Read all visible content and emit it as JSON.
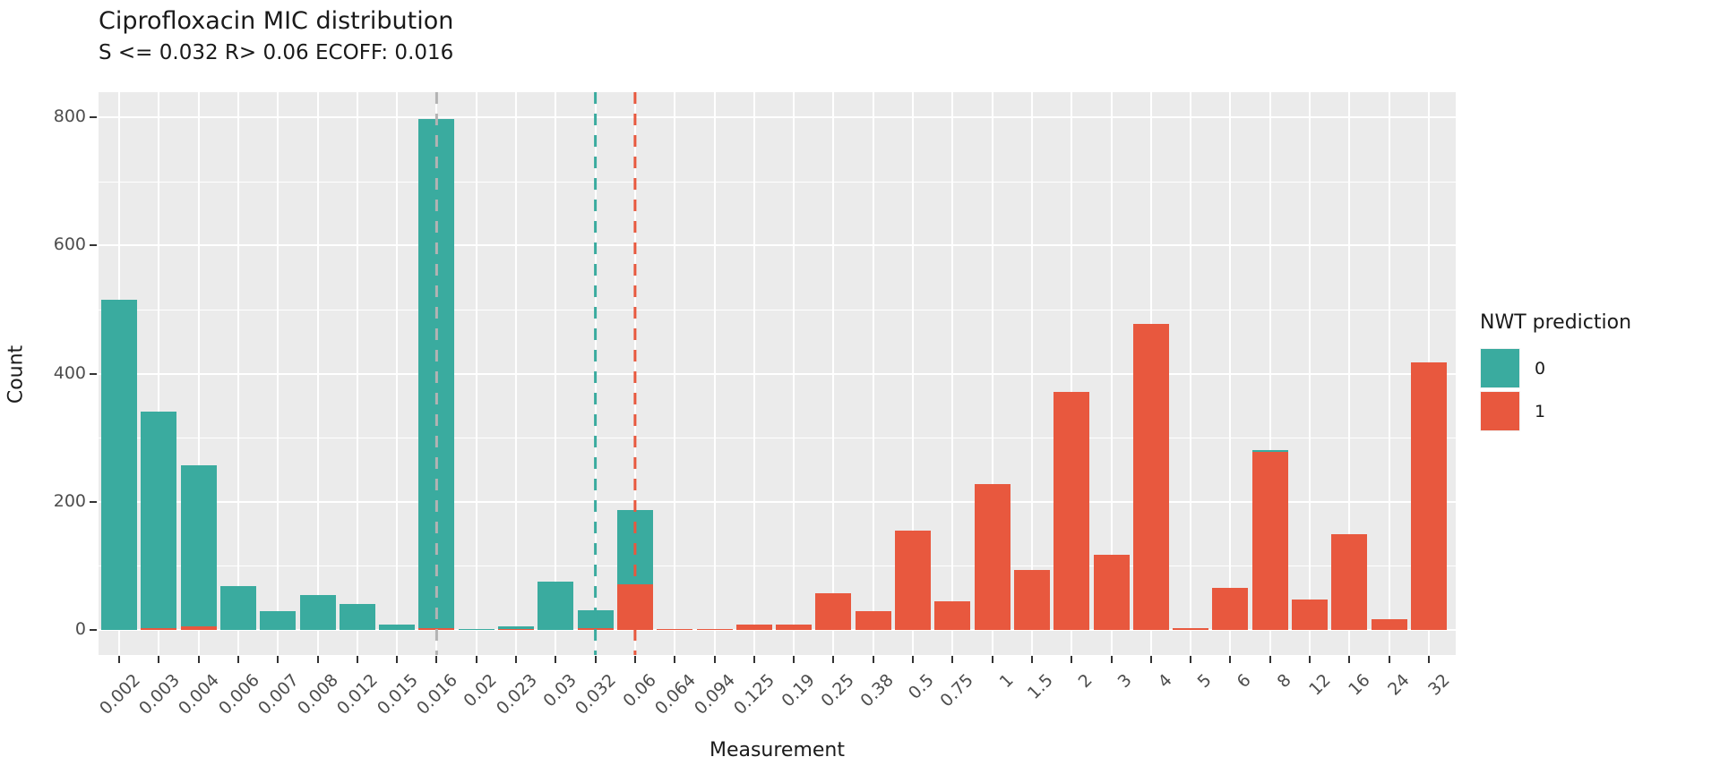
{
  "chart": {
    "title": "Ciprofloxacin MIC distribution",
    "subtitle": "S <= 0.032 R> 0.06 ECOFF: 0.016",
    "xlabel": "Measurement",
    "ylabel": "Count",
    "legend_title": "NWT prediction"
  },
  "colors": {
    "teal_nwt0": "#3AAB9F",
    "red_nwt1": "#E8583E",
    "panel_background": "#EBEBEB",
    "grid": "#FFFFFF",
    "ecoff_line_gray": "#B3B3B3",
    "axis_text": "#4D4D4D",
    "tick_mark": "#333333"
  },
  "chart_data": {
    "type": "bar",
    "stacked": true,
    "title": "Ciprofloxacin MIC distribution",
    "subtitle": "S <= 0.032 R> 0.06 ECOFF: 0.016",
    "xlabel": "Measurement",
    "ylabel": "Count",
    "legend_title": "NWT prediction",
    "legend_position": "right",
    "categories": [
      "0.002",
      "0.003",
      "0.004",
      "0.006",
      "0.007",
      "0.008",
      "0.012",
      "0.015",
      "0.016",
      "0.02",
      "0.023",
      "0.03",
      "0.032",
      "0.06",
      "0.064",
      "0.094",
      "0.125",
      "0.19",
      "0.25",
      "0.38",
      "0.5",
      "0.75",
      "1",
      "1.5",
      "2",
      "3",
      "4",
      "5",
      "6",
      "8",
      "12",
      "16",
      "24",
      "32"
    ],
    "series": [
      {
        "name": "0",
        "color": "#3AAB9F",
        "values": [
          515,
          337,
          252,
          68,
          30,
          54,
          41,
          9,
          794,
          2,
          4,
          75,
          28,
          116,
          0,
          0,
          0,
          0,
          0,
          0,
          0,
          0,
          0,
          0,
          0,
          0,
          0,
          0,
          0,
          3,
          0,
          0,
          0,
          0
        ]
      },
      {
        "name": "1",
        "color": "#E8583E",
        "values": [
          0,
          3,
          5,
          0,
          0,
          0,
          0,
          0,
          3,
          0,
          2,
          0,
          3,
          71,
          2,
          2,
          8,
          8,
          58,
          29,
          155,
          45,
          228,
          93,
          372,
          117,
          478,
          3,
          65,
          278,
          47,
          150,
          17,
          418
        ]
      }
    ],
    "stack_order_bottom_to_top": [
      "1",
      "0"
    ],
    "y_ticks": [
      0,
      200,
      400,
      600,
      800
    ],
    "y_minor_ticks": [
      100,
      300,
      500,
      700
    ],
    "ylim": [
      -39,
      839
    ],
    "grid": "white major+minor horizontal, white vertical at category centers, on gray panel",
    "vlines": [
      {
        "at": "0.016",
        "color": "#B3B3B3",
        "style": "dashed"
      },
      {
        "at": "0.032",
        "color": "#3AAB9F",
        "style": "dashed"
      },
      {
        "at": "0.06",
        "color": "#E8583E",
        "style": "dashed"
      }
    ]
  }
}
